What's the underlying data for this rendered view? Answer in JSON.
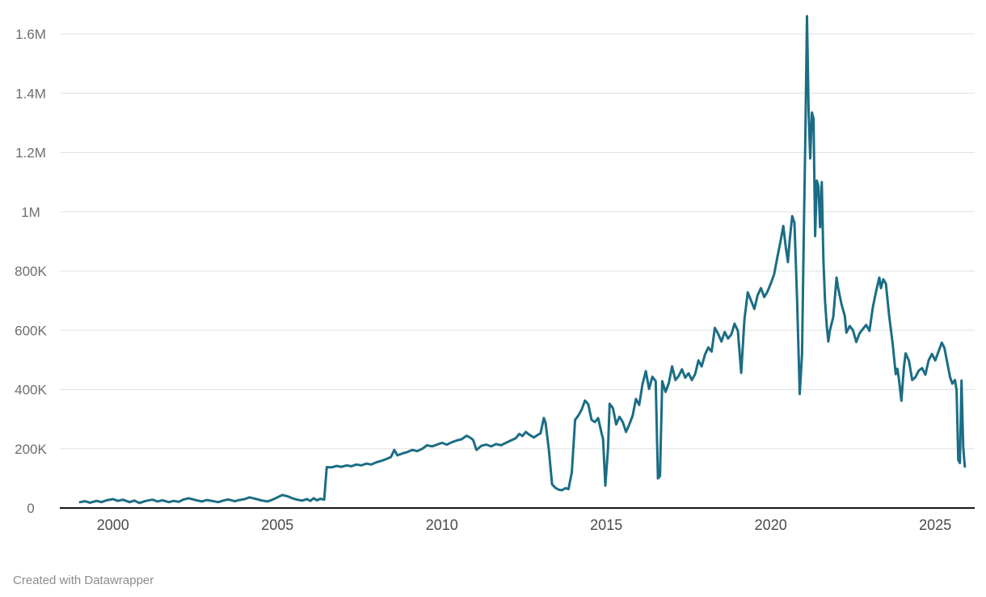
{
  "footer": {
    "attribution": "Created with Datawrapper"
  },
  "colors": {
    "line": "#1b6d85",
    "grid": "#e0e0e0",
    "axis_baseline": "#161616",
    "y_tick_label": "#6e6e6e",
    "x_tick_label": "#4a4a4a",
    "attribution_text": "#8c8c8c",
    "background": "#ffffff"
  },
  "chart_data": {
    "type": "line",
    "title": "",
    "xlabel": "",
    "ylabel": "",
    "value_unit": "thousands",
    "grid": "horizontal",
    "legend": "none",
    "xlim": [
      1998.8,
      2026.2
    ],
    "ylim": [
      0,
      1600
    ],
    "x_ticks": [
      2000,
      2005,
      2010,
      2015,
      2020,
      2025
    ],
    "x_tick_labels": [
      "2000",
      "2005",
      "2010",
      "2015",
      "2020",
      "2025"
    ],
    "y_ticks": [
      0,
      200,
      400,
      600,
      800,
      1000,
      1200,
      1400,
      1600
    ],
    "y_tick_labels": [
      "0",
      "200K",
      "400K",
      "600K",
      "800K",
      "1M",
      "1.2M",
      "1.4M",
      "1.6M"
    ],
    "line_color": "#1b6d85",
    "series": [
      {
        "name": "value",
        "points": [
          [
            1999,
            20
          ],
          [
            1999.15,
            23
          ],
          [
            1999.3,
            18
          ],
          [
            1999.5,
            24
          ],
          [
            1999.65,
            20
          ],
          [
            1999.8,
            26
          ],
          [
            2000,
            30
          ],
          [
            2000.15,
            24
          ],
          [
            2000.3,
            28
          ],
          [
            2000.5,
            20
          ],
          [
            2000.65,
            25
          ],
          [
            2000.8,
            17
          ],
          [
            2001,
            24
          ],
          [
            2001.2,
            28
          ],
          [
            2001.35,
            22
          ],
          [
            2001.5,
            26
          ],
          [
            2001.7,
            20
          ],
          [
            2001.85,
            24
          ],
          [
            2002,
            21
          ],
          [
            2002.15,
            29
          ],
          [
            2002.3,
            33
          ],
          [
            2002.5,
            27
          ],
          [
            2002.7,
            22
          ],
          [
            2002.85,
            27
          ],
          [
            2003,
            24
          ],
          [
            2003.2,
            20
          ],
          [
            2003.35,
            25
          ],
          [
            2003.5,
            29
          ],
          [
            2003.7,
            23
          ],
          [
            2003.85,
            27
          ],
          [
            2004,
            30
          ],
          [
            2004.15,
            36
          ],
          [
            2004.3,
            32
          ],
          [
            2004.5,
            26
          ],
          [
            2004.7,
            22
          ],
          [
            2004.85,
            28
          ],
          [
            2005,
            36
          ],
          [
            2005.15,
            44
          ],
          [
            2005.3,
            40
          ],
          [
            2005.45,
            33
          ],
          [
            2005.6,
            28
          ],
          [
            2005.75,
            25
          ],
          [
            2005.9,
            30
          ],
          [
            2006,
            24
          ],
          [
            2006.1,
            33
          ],
          [
            2006.2,
            26
          ],
          [
            2006.3,
            31
          ],
          [
            2006.42,
            28
          ],
          [
            2006.5,
            138
          ],
          [
            2006.65,
            137
          ],
          [
            2006.8,
            142
          ],
          [
            2006.95,
            139
          ],
          [
            2007.1,
            144
          ],
          [
            2007.25,
            141
          ],
          [
            2007.4,
            147
          ],
          [
            2007.55,
            144
          ],
          [
            2007.7,
            150
          ],
          [
            2007.85,
            147
          ],
          [
            2008,
            154
          ],
          [
            2008.15,
            159
          ],
          [
            2008.3,
            165
          ],
          [
            2008.45,
            172
          ],
          [
            2008.55,
            196
          ],
          [
            2008.65,
            178
          ],
          [
            2008.8,
            184
          ],
          [
            2008.95,
            189
          ],
          [
            2009.1,
            196
          ],
          [
            2009.25,
            192
          ],
          [
            2009.4,
            200
          ],
          [
            2009.55,
            212
          ],
          [
            2009.7,
            208
          ],
          [
            2009.85,
            214
          ],
          [
            2010,
            220
          ],
          [
            2010.15,
            214
          ],
          [
            2010.3,
            222
          ],
          [
            2010.45,
            228
          ],
          [
            2010.6,
            232
          ],
          [
            2010.75,
            244
          ],
          [
            2010.85,
            238
          ],
          [
            2010.95,
            230
          ],
          [
            2011.05,
            196
          ],
          [
            2011.2,
            210
          ],
          [
            2011.35,
            214
          ],
          [
            2011.5,
            208
          ],
          [
            2011.65,
            216
          ],
          [
            2011.8,
            212
          ],
          [
            2011.95,
            220
          ],
          [
            2012.1,
            228
          ],
          [
            2012.25,
            236
          ],
          [
            2012.35,
            250
          ],
          [
            2012.45,
            243
          ],
          [
            2012.55,
            257
          ],
          [
            2012.65,
            248
          ],
          [
            2012.8,
            238
          ],
          [
            2012.9,
            246
          ],
          [
            2013,
            252
          ],
          [
            2013.1,
            304
          ],
          [
            2013.15,
            288
          ],
          [
            2013.25,
            200
          ],
          [
            2013.35,
            80
          ],
          [
            2013.45,
            68
          ],
          [
            2013.55,
            62
          ],
          [
            2013.65,
            60
          ],
          [
            2013.75,
            67
          ],
          [
            2013.85,
            64
          ],
          [
            2013.95,
            120
          ],
          [
            2014.05,
            298
          ],
          [
            2014.15,
            312
          ],
          [
            2014.25,
            332
          ],
          [
            2014.35,
            363
          ],
          [
            2014.45,
            350
          ],
          [
            2014.55,
            298
          ],
          [
            2014.65,
            290
          ],
          [
            2014.75,
            303
          ],
          [
            2014.85,
            255
          ],
          [
            2014.9,
            232
          ],
          [
            2014.97,
            76
          ],
          [
            2015.05,
            200
          ],
          [
            2015.1,
            352
          ],
          [
            2015.2,
            337
          ],
          [
            2015.3,
            282
          ],
          [
            2015.4,
            308
          ],
          [
            2015.5,
            290
          ],
          [
            2015.6,
            257
          ],
          [
            2015.7,
            282
          ],
          [
            2015.8,
            312
          ],
          [
            2015.9,
            368
          ],
          [
            2016,
            348
          ],
          [
            2016.1,
            418
          ],
          [
            2016.2,
            462
          ],
          [
            2016.3,
            402
          ],
          [
            2016.4,
            443
          ],
          [
            2016.5,
            428
          ],
          [
            2016.57,
            100
          ],
          [
            2016.63,
            108
          ],
          [
            2016.7,
            428
          ],
          [
            2016.8,
            392
          ],
          [
            2016.9,
            422
          ],
          [
            2017,
            478
          ],
          [
            2017.1,
            432
          ],
          [
            2017.2,
            446
          ],
          [
            2017.3,
            468
          ],
          [
            2017.4,
            440
          ],
          [
            2017.5,
            455
          ],
          [
            2017.6,
            432
          ],
          [
            2017.7,
            452
          ],
          [
            2017.8,
            498
          ],
          [
            2017.9,
            478
          ],
          [
            2018,
            518
          ],
          [
            2018.1,
            542
          ],
          [
            2018.2,
            528
          ],
          [
            2018.3,
            608
          ],
          [
            2018.4,
            588
          ],
          [
            2018.5,
            562
          ],
          [
            2018.6,
            594
          ],
          [
            2018.7,
            572
          ],
          [
            2018.8,
            586
          ],
          [
            2018.9,
            622
          ],
          [
            2019,
            598
          ],
          [
            2019.1,
            456
          ],
          [
            2019.2,
            636
          ],
          [
            2019.3,
            728
          ],
          [
            2019.4,
            700
          ],
          [
            2019.5,
            672
          ],
          [
            2019.6,
            718
          ],
          [
            2019.7,
            742
          ],
          [
            2019.8,
            712
          ],
          [
            2019.9,
            730
          ],
          [
            2020,
            758
          ],
          [
            2020.1,
            788
          ],
          [
            2020.2,
            846
          ],
          [
            2020.3,
            902
          ],
          [
            2020.38,
            952
          ],
          [
            2020.45,
            886
          ],
          [
            2020.52,
            830
          ],
          [
            2020.58,
            910
          ],
          [
            2020.65,
            985
          ],
          [
            2020.72,
            962
          ],
          [
            2020.8,
            700
          ],
          [
            2020.88,
            385
          ],
          [
            2020.95,
            520
          ],
          [
            2021,
            900
          ],
          [
            2021.05,
            1240
          ],
          [
            2021.1,
            1660
          ],
          [
            2021.15,
            1340
          ],
          [
            2021.2,
            1180
          ],
          [
            2021.25,
            1335
          ],
          [
            2021.3,
            1315
          ],
          [
            2021.35,
            918
          ],
          [
            2021.4,
            1105
          ],
          [
            2021.45,
            1085
          ],
          [
            2021.5,
            948
          ],
          [
            2021.55,
            1100
          ],
          [
            2021.6,
            840
          ],
          [
            2021.65,
            700
          ],
          [
            2021.7,
            618
          ],
          [
            2021.75,
            562
          ],
          [
            2021.8,
            600
          ],
          [
            2021.9,
            645
          ],
          [
            2022,
            778
          ],
          [
            2022.05,
            742
          ],
          [
            2022.15,
            688
          ],
          [
            2022.25,
            648
          ],
          [
            2022.3,
            592
          ],
          [
            2022.4,
            614
          ],
          [
            2022.5,
            600
          ],
          [
            2022.6,
            560
          ],
          [
            2022.7,
            590
          ],
          [
            2022.8,
            604
          ],
          [
            2022.9,
            618
          ],
          [
            2023,
            598
          ],
          [
            2023.1,
            676
          ],
          [
            2023.2,
            730
          ],
          [
            2023.3,
            778
          ],
          [
            2023.35,
            742
          ],
          [
            2023.42,
            772
          ],
          [
            2023.5,
            758
          ],
          [
            2023.6,
            648
          ],
          [
            2023.7,
            560
          ],
          [
            2023.8,
            452
          ],
          [
            2023.85,
            470
          ],
          [
            2023.9,
            432
          ],
          [
            2023.97,
            362
          ],
          [
            2024.05,
            478
          ],
          [
            2024.1,
            522
          ],
          [
            2024.2,
            498
          ],
          [
            2024.3,
            432
          ],
          [
            2024.4,
            442
          ],
          [
            2024.5,
            464
          ],
          [
            2024.6,
            472
          ],
          [
            2024.7,
            450
          ],
          [
            2024.8,
            498
          ],
          [
            2024.9,
            520
          ],
          [
            2025,
            498
          ],
          [
            2025.1,
            528
          ],
          [
            2025.2,
            558
          ],
          [
            2025.28,
            540
          ],
          [
            2025.35,
            500
          ],
          [
            2025.45,
            442
          ],
          [
            2025.52,
            420
          ],
          [
            2025.6,
            432
          ],
          [
            2025.65,
            398
          ],
          [
            2025.7,
            162
          ],
          [
            2025.75,
            152
          ],
          [
            2025.8,
            430
          ],
          [
            2025.85,
            205
          ],
          [
            2025.9,
            140
          ]
        ]
      }
    ]
  }
}
